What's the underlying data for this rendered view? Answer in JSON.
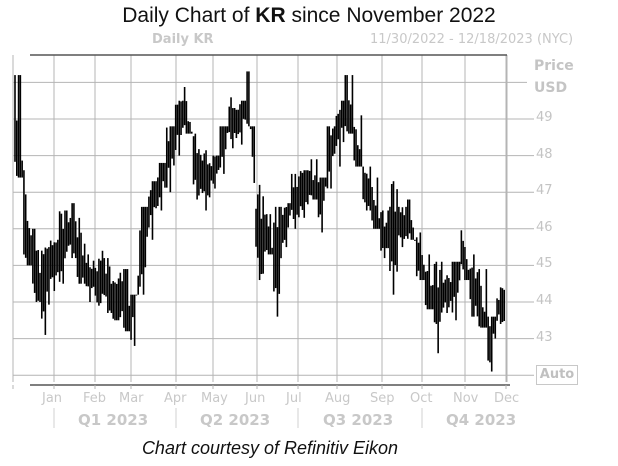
{
  "header": {
    "title_prefix": "Daily Chart of ",
    "title_ticker": "KR",
    "title_suffix": " since November 2022",
    "panel_label": "Daily KR",
    "date_range": "11/30/2022 - 12/18/2023 (NYC)"
  },
  "axis": {
    "y_title_line1": "Price",
    "y_title_line2": "USD",
    "auto_button": "Auto",
    "credit": "Chart courtesy of Refinitiv Eikon"
  },
  "colors": {
    "bars": "#000000",
    "grid": "#b4b4b4",
    "axis_text": "#c8c8c8",
    "frame": "#555555"
  },
  "chart_data": {
    "type": "ohlc_bar",
    "title": "Daily Chart of KR since November 2022",
    "subtitle_left": "Daily KR",
    "subtitle_right": "11/30/2022 - 12/18/2023 (NYC)",
    "ylabel": "Price USD",
    "xlabel": "",
    "ylim": [
      41.9,
      50.7
    ],
    "y_ticks": [
      43,
      44,
      45,
      46,
      47,
      48,
      49
    ],
    "x_month_labels": [
      "Jan",
      "Feb",
      "Mar",
      "Apr",
      "May",
      "Jun",
      "Jul",
      "Aug",
      "Sep",
      "Oct",
      "Nov",
      "Dec"
    ],
    "x_quarter_labels": [
      "Q1 2023",
      "Q2 2023",
      "Q3 2023",
      "Q4 2023"
    ],
    "grid": true,
    "legend": "none",
    "weekly_ranges": [
      {
        "week": "2022-12-01",
        "high": 50.2,
        "low": 47.4
      },
      {
        "week": "2022-12-08",
        "high": 47.6,
        "low": 45.0
      },
      {
        "week": "2022-12-15",
        "high": 46.0,
        "low": 44.0
      },
      {
        "week": "2022-12-22",
        "high": 45.5,
        "low": 43.1
      },
      {
        "week": "2022-12-29",
        "high": 45.7,
        "low": 44.3
      },
      {
        "week": "2023-01-05",
        "high": 46.5,
        "low": 44.5
      },
      {
        "week": "2023-01-12",
        "high": 46.7,
        "low": 45.2
      },
      {
        "week": "2023-01-19",
        "high": 46.3,
        "low": 44.5
      },
      {
        "week": "2023-01-26",
        "high": 45.3,
        "low": 44.0
      },
      {
        "week": "2023-02-02",
        "high": 45.4,
        "low": 43.9
      },
      {
        "week": "2023-02-09",
        "high": 45.2,
        "low": 43.7
      },
      {
        "week": "2023-02-16",
        "high": 44.8,
        "low": 43.5
      },
      {
        "week": "2023-02-23",
        "high": 44.9,
        "low": 43.2
      },
      {
        "week": "2023-03-02",
        "high": 44.2,
        "low": 42.8
      },
      {
        "week": "2023-03-09",
        "high": 46.6,
        "low": 44.2
      },
      {
        "week": "2023-03-16",
        "high": 47.3,
        "low": 45.7
      },
      {
        "week": "2023-03-23",
        "high": 47.8,
        "low": 46.5
      },
      {
        "week": "2023-03-30",
        "high": 48.8,
        "low": 47.0
      },
      {
        "week": "2023-04-06",
        "high": 49.5,
        "low": 48.0
      },
      {
        "week": "2023-04-13",
        "high": 50.0,
        "low": 48.6
      },
      {
        "week": "2023-04-20",
        "high": 48.6,
        "low": 46.8
      },
      {
        "week": "2023-04-27",
        "high": 48.3,
        "low": 46.5
      },
      {
        "week": "2023-05-04",
        "high": 48.0,
        "low": 47.1
      },
      {
        "week": "2023-05-11",
        "high": 48.8,
        "low": 47.5
      },
      {
        "week": "2023-05-18",
        "high": 49.9,
        "low": 48.2
      },
      {
        "week": "2023-05-25",
        "high": 49.5,
        "low": 48.3
      },
      {
        "week": "2023-06-01",
        "high": 50.3,
        "low": 48.8
      },
      {
        "week": "2023-06-08",
        "high": 47.2,
        "low": 44.6
      },
      {
        "week": "2023-06-15",
        "high": 46.4,
        "low": 45.3
      },
      {
        "week": "2023-06-22",
        "high": 46.6,
        "low": 43.6
      },
      {
        "week": "2023-06-29",
        "high": 46.7,
        "low": 45.5
      },
      {
        "week": "2023-07-06",
        "high": 47.5,
        "low": 46.0
      },
      {
        "week": "2023-07-13",
        "high": 47.6,
        "low": 46.3
      },
      {
        "week": "2023-07-20",
        "high": 47.9,
        "low": 46.8
      },
      {
        "week": "2023-07-27",
        "high": 47.4,
        "low": 45.9
      },
      {
        "week": "2023-08-03",
        "high": 48.8,
        "low": 47.1
      },
      {
        "week": "2023-08-10",
        "high": 49.5,
        "low": 47.7
      },
      {
        "week": "2023-08-17",
        "high": 50.2,
        "low": 48.6
      },
      {
        "week": "2023-08-24",
        "high": 49.1,
        "low": 47.7
      },
      {
        "week": "2023-08-31",
        "high": 47.7,
        "low": 46.5
      },
      {
        "week": "2023-09-07",
        "high": 47.4,
        "low": 46.0
      },
      {
        "week": "2023-09-14",
        "high": 46.5,
        "low": 45.2
      },
      {
        "week": "2023-09-21",
        "high": 47.3,
        "low": 44.2
      },
      {
        "week": "2023-09-28",
        "high": 46.6,
        "low": 45.5
      },
      {
        "week": "2023-10-05",
        "high": 46.8,
        "low": 45.7
      },
      {
        "week": "2023-10-12",
        "high": 45.9,
        "low": 44.6
      },
      {
        "week": "2023-10-19",
        "high": 45.3,
        "low": 43.8
      },
      {
        "week": "2023-10-26",
        "high": 45.1,
        "low": 42.6
      },
      {
        "week": "2023-11-02",
        "high": 44.8,
        "low": 43.7
      },
      {
        "week": "2023-11-09",
        "high": 45.1,
        "low": 43.5
      },
      {
        "week": "2023-11-16",
        "high": 46.0,
        "low": 44.6
      },
      {
        "week": "2023-11-23",
        "high": 45.3,
        "low": 43.6
      },
      {
        "week": "2023-11-30",
        "high": 44.9,
        "low": 43.3
      },
      {
        "week": "2023-12-07",
        "high": 43.6,
        "low": 42.1
      },
      {
        "week": "2023-12-14",
        "high": 44.4,
        "low": 43.4
      }
    ]
  }
}
